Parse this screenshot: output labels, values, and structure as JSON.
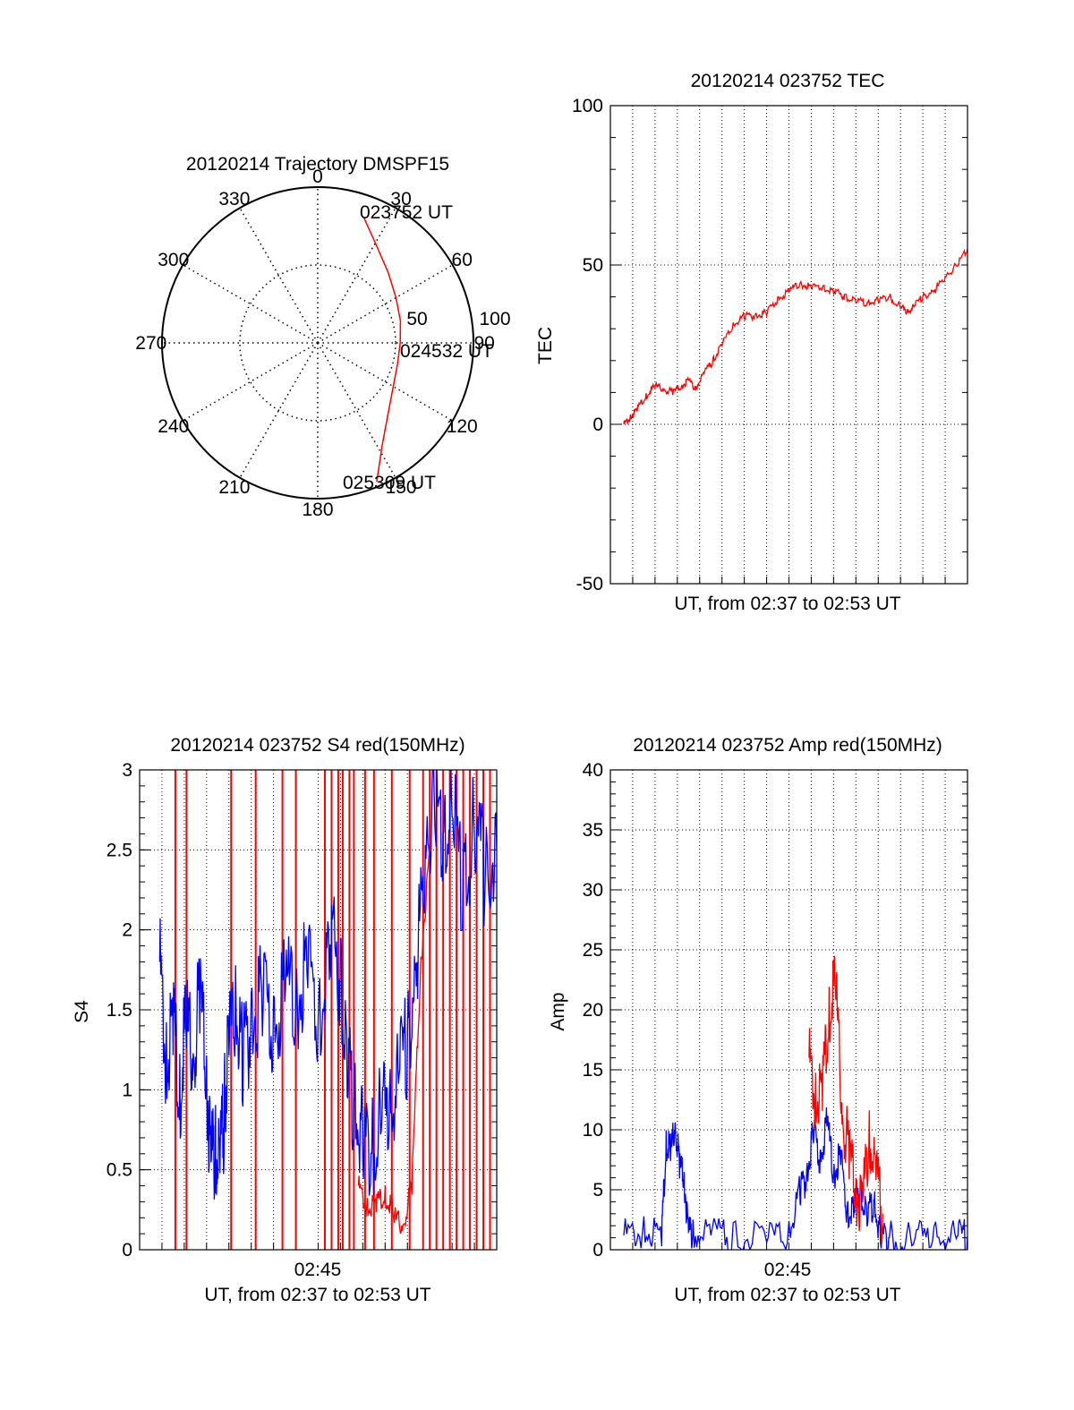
{
  "chart_data": [
    {
      "type": "polar",
      "title": "20120214 Trajectory DMSPF15",
      "azimuth_ticks": [
        "0",
        "30",
        "60",
        "90",
        "120",
        "150",
        "180",
        "210",
        "240",
        "270",
        "300",
        "330"
      ],
      "radial_ticks": [
        "50",
        "100"
      ],
      "rlim": [
        0,
        100
      ],
      "grid": true,
      "series": [
        {
          "color": "#ff0000",
          "points": [
            {
              "az": 20,
              "r": 86
            },
            {
              "az": 30,
              "r": 74
            },
            {
              "az": 45,
              "r": 64
            },
            {
              "az": 60,
              "r": 58
            },
            {
              "az": 75,
              "r": 55
            },
            {
              "az": 90,
              "r": 53
            },
            {
              "az": 105,
              "r": 53
            },
            {
              "az": 120,
              "r": 56
            },
            {
              "az": 135,
              "r": 64
            },
            {
              "az": 148,
              "r": 78
            },
            {
              "az": 157,
              "r": 97
            }
          ]
        }
      ],
      "annotations": [
        "023752 UT",
        "024532 UT",
        "025309 UT"
      ]
    },
    {
      "type": "line",
      "title": "20120214 023752 TEC",
      "xlabel": "UT, from 02:37 to 02:53 UT",
      "ylabel": "TEC",
      "ylim": [
        -50,
        100
      ],
      "yticks": [
        "100",
        "50",
        "0",
        "-50"
      ],
      "xlim": [
        0,
        16
      ],
      "grid": true,
      "series": [
        {
          "color": "#ff0000",
          "x": [
            0.6,
            0.9,
            1.2,
            1.6,
            2.0,
            2.4,
            2.8,
            3.2,
            3.5,
            3.8,
            4.2,
            4.6,
            5.0,
            5.5,
            6.0,
            6.5,
            7.0,
            7.5,
            8.0,
            8.5,
            9.0,
            9.5,
            10.0,
            10.5,
            11.0,
            11.5,
            12.0,
            12.5,
            13.0,
            13.3,
            13.6,
            14.0,
            14.5,
            15.0,
            15.5,
            16.0
          ],
          "y": [
            0,
            2,
            5,
            9,
            12,
            11,
            10,
            12,
            14,
            11,
            16,
            20,
            25,
            31,
            34,
            34,
            35,
            39,
            42,
            44,
            43,
            43,
            42,
            40,
            39,
            38,
            39,
            40,
            37,
            35,
            37,
            40,
            42,
            46,
            50,
            55
          ]
        }
      ]
    },
    {
      "type": "line",
      "title": "20120214 023752 S4 red(150MHz)",
      "xlabel": "UT, from 02:37 to 02:53 UT",
      "ylabel": "S4",
      "xtick_label": "02:45",
      "ylim": [
        0,
        3
      ],
      "yticks": [
        "3",
        "2.5",
        "2",
        "1.5",
        "1",
        "0.5",
        "0"
      ],
      "xlim": [
        0,
        16
      ],
      "grid": true,
      "series": [
        {
          "color": "#0000ff",
          "x": [
            0.9,
            1.2,
            1.5,
            1.8,
            2.1,
            2.4,
            2.7,
            3.0,
            3.2,
            3.4,
            3.6,
            3.8,
            4.0,
            4.3,
            4.6,
            5.0,
            5.5,
            6.0,
            6.5,
            7.0,
            7.5,
            8.0,
            8.5,
            9.0,
            9.3,
            9.6,
            10.0,
            10.4,
            10.8,
            11.2,
            11.6,
            12.0,
            12.4,
            12.8,
            13.2,
            13.6,
            14.0,
            14.5,
            15.0,
            15.5,
            16.0
          ],
          "y": [
            1.8,
            1.1,
            1.5,
            1.0,
            1.4,
            1.2,
            1.6,
            1.1,
            0.55,
            0.6,
            0.5,
            0.9,
            1.3,
            1.5,
            1.2,
            1.4,
            1.6,
            1.3,
            1.7,
            1.5,
            1.8,
            1.4,
            2.0,
            1.7,
            1.2,
            0.9,
            0.7,
            0.6,
            0.9,
            0.8,
            1.1,
            1.3,
            1.8,
            2.4,
            2.9,
            2.5,
            2.8,
            2.2,
            2.7,
            2.3,
            2.5
          ]
        },
        {
          "color": "#ff0000",
          "x": [
            9.8,
            10.2,
            10.6,
            11.0,
            11.4,
            11.8,
            12.2,
            12.6,
            13.0
          ],
          "y": [
            0.4,
            0.25,
            0.3,
            0.35,
            0.2,
            0.15,
            0.4,
            1.8,
            2.5
          ]
        }
      ],
      "red_spike_x": [
        1.6,
        2.1,
        4.1,
        5.2,
        6.4,
        7.0,
        8.3,
        8.6,
        8.9,
        9.1,
        9.4,
        9.6,
        10.1,
        10.5,
        11.3,
        12.1,
        12.7,
        13.0,
        13.3,
        13.6,
        13.9,
        14.2,
        14.5,
        14.8,
        15.1,
        15.4,
        15.7
      ]
    },
    {
      "type": "line",
      "title": "20120214 023752 Amp red(150MHz)",
      "xlabel": "UT, from 02:37 to 02:53 UT",
      "ylabel": "Amp",
      "xtick_label": "02:45",
      "ylim": [
        0,
        40
      ],
      "yticks": [
        "40",
        "35",
        "30",
        "25",
        "20",
        "15",
        "10",
        "5",
        "0"
      ],
      "xlim": [
        0,
        16
      ],
      "grid": true,
      "series": [
        {
          "color": "#0000ff",
          "x": [
            0.6,
            1.5,
            2.3,
            2.5,
            2.7,
            2.9,
            3.1,
            3.3,
            3.5,
            3.7,
            4.5,
            5.5,
            7.0,
            8.0,
            8.5,
            8.8,
            9.1,
            9.4,
            9.7,
            10.0,
            10.3,
            10.6,
            10.9,
            11.2,
            11.5,
            11.8,
            12.1,
            12.5,
            13.5,
            14.5,
            15.5,
            16.0
          ],
          "y": [
            1.2,
            1.4,
            1.5,
            9,
            8,
            10.5,
            7,
            6,
            1.5,
            1.2,
            1.3,
            1.1,
            1.0,
            1.2,
            5,
            6,
            10,
            7,
            11,
            6,
            8,
            3,
            4,
            5,
            3,
            4,
            1.2,
            1.0,
            1.1,
            1.0,
            1.2,
            1.1
          ]
        },
        {
          "color": "#ff0000",
          "x": [
            8.9,
            9.2,
            9.5,
            9.8,
            10.1,
            10.4,
            10.7,
            11.0,
            11.3,
            11.6,
            11.9,
            12.2
          ],
          "y": [
            16,
            12,
            14,
            20,
            22,
            11,
            8,
            5,
            4,
            9,
            6,
            3
          ]
        }
      ]
    }
  ]
}
